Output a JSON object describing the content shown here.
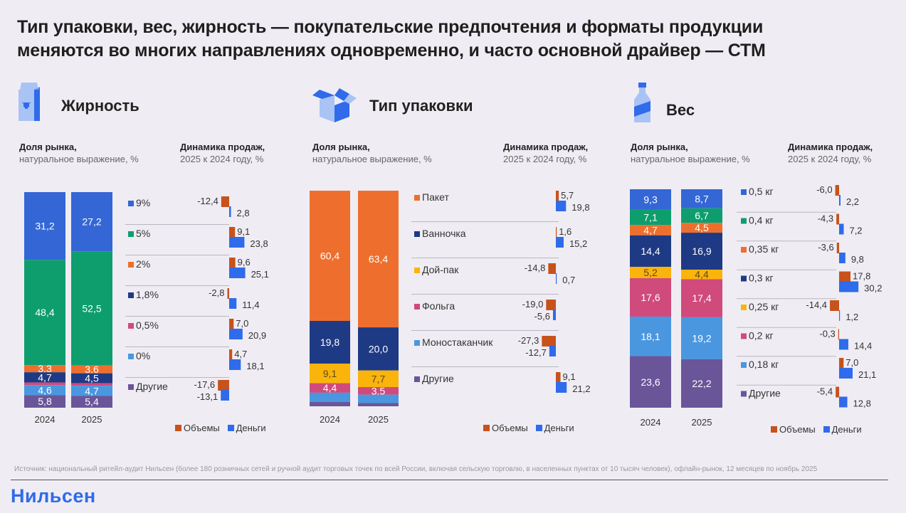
{
  "title_lines": [
    "Тип упаковки, вес, жирность — покупательские предпочтения и форматы продукции",
    "меняются во многих направлениях одновременно, и часто основной драйвер — СТМ"
  ],
  "subtitles": {
    "share_bold": "Доля рынка,",
    "share_light": "натуральное выражение, %",
    "dyn_bold": "Динамика продаж,",
    "dyn_light": "2025 к 2024 году, %"
  },
  "legend": {
    "volume": "Объемы",
    "money": "Деньги",
    "volume_color": "#c8521c",
    "money_color": "#2f6bea"
  },
  "footer": {
    "source": "Источник: национальный ритейл-аудит Нильсен (более 180 розничных сетей и ручной аудит торговых точек по всей России, включая сельскую торговлю, в населенных пунктах от 10 тысяч человек), офлайн-рынок, 12 месяцев по ноябрь 2025",
    "brand": "Нильсен"
  },
  "chart_data": [
    {
      "type": "bar",
      "title": "Жирность",
      "icon": "milk-carton-icon",
      "years": [
        "2024",
        "2025"
      ],
      "categories": [
        "9%",
        "5%",
        "2%",
        "1,8%",
        "0,5%",
        "0%",
        "Другие"
      ],
      "colors": [
        "#3466d6",
        "#0e9e6e",
        "#ee6f2d",
        "#1e3a84",
        "#d04a7c",
        "#4a97e0",
        "#6a5599"
      ],
      "label_colors": [
        "#fff",
        "#fff",
        "#fff",
        "#fff",
        "#fff",
        "#fff",
        "#fff"
      ],
      "share_2024": [
        31.2,
        48.4,
        3.3,
        4.7,
        1.2,
        4.6,
        5.8
      ],
      "share_2025": [
        27.2,
        52.5,
        3.6,
        4.5,
        1.2,
        4.7,
        5.4
      ],
      "share_labels_2024": [
        "31,2",
        "48,4",
        "3,3",
        "4,7",
        "",
        "4,6",
        "5,8"
      ],
      "share_labels_2025": [
        "27,2",
        "52,5",
        "3,6",
        "4,5",
        "",
        "4,7",
        "5,4"
      ],
      "volume_change": [
        -12.4,
        9.1,
        9.6,
        -2.8,
        7.0,
        4.7,
        -17.6
      ],
      "money_change": [
        2.8,
        23.8,
        25.1,
        11.4,
        20.9,
        18.1,
        -13.1
      ],
      "volume_labels": [
        "-12,4",
        "9,1",
        "9,6",
        "-2,8",
        "7,0",
        "4,7",
        "-17,6"
      ],
      "money_labels": [
        "2,8",
        "23,8",
        "25,1",
        "11,4",
        "20,9",
        "18,1",
        "-13,1"
      ]
    },
    {
      "type": "bar",
      "title": "Тип упаковки",
      "icon": "box-icon",
      "years": [
        "2024",
        "2025"
      ],
      "categories": [
        "Пакет",
        "Ванночка",
        "Дой-пак",
        "Фольга",
        "Моностаканчик",
        "Другие"
      ],
      "colors": [
        "#ee6f2d",
        "#1e3a84",
        "#fbb40c",
        "#d04a7c",
        "#4a97e0",
        "#6a5599"
      ],
      "label_colors": [
        "#fff",
        "#fff",
        "#5a4a20",
        "#fff",
        "#fff",
        "#fff"
      ],
      "share_2024": [
        60.4,
        19.8,
        9.1,
        4.4,
        4.3,
        2.0
      ],
      "share_2025": [
        63.4,
        20.0,
        7.7,
        3.5,
        3.9,
        1.5
      ],
      "share_labels_2024": [
        "60,4",
        "19,8",
        "9,1",
        "4,4",
        "",
        ""
      ],
      "share_labels_2025": [
        "63,4",
        "20,0",
        "7,7",
        "3,5",
        "",
        ""
      ],
      "volume_change": [
        5.7,
        1.6,
        -14.8,
        -19.0,
        -27.3,
        9.1
      ],
      "money_change": [
        19.8,
        15.2,
        0.7,
        -5.6,
        -12.7,
        21.2
      ],
      "volume_labels": [
        "5,7",
        "1,6",
        "-14,8",
        "-19,0",
        "-27,3",
        "9,1"
      ],
      "money_labels": [
        "19,8",
        "15,2",
        "0,7",
        "-5,6",
        "-12,7",
        "21,2"
      ]
    },
    {
      "type": "bar",
      "title": "Вес",
      "icon": "bottle-icon",
      "years": [
        "2024",
        "2025"
      ],
      "categories": [
        "0,5 кг",
        "0,4 кг",
        "0,35 кг",
        "0,3 кг",
        "0,25 кг",
        "0,2 кг",
        "0,18 кг",
        "Другие"
      ],
      "colors": [
        "#3466d6",
        "#0e9e6e",
        "#ee6f2d",
        "#1e3a84",
        "#fbb40c",
        "#d04a7c",
        "#4a97e0",
        "#6a5599"
      ],
      "label_colors": [
        "#fff",
        "#fff",
        "#fff",
        "#fff",
        "#5a4a20",
        "#fff",
        "#fff",
        "#fff"
      ],
      "share_2024": [
        9.3,
        7.1,
        4.7,
        14.4,
        5.2,
        17.6,
        18.1,
        23.6
      ],
      "share_2025": [
        8.7,
        6.7,
        4.5,
        16.9,
        4.4,
        17.4,
        19.2,
        22.2
      ],
      "share_labels_2024": [
        "9,3",
        "7,1",
        "4,7",
        "14,4",
        "5,2",
        "17,6",
        "18,1",
        "23,6"
      ],
      "share_labels_2025": [
        "8,7",
        "6,7",
        "4,5",
        "16,9",
        "4,4",
        "17,4",
        "19,2",
        "22,2"
      ],
      "volume_change": [
        -6.0,
        -4.3,
        -3.6,
        17.8,
        -14.4,
        -0.3,
        7.0,
        -5.4
      ],
      "money_change": [
        2.2,
        7.2,
        9.8,
        30.2,
        1.2,
        14.4,
        21.1,
        12.8
      ],
      "volume_labels": [
        "-6,0",
        "-4,3",
        "-3,6",
        "17,8",
        "-14,4",
        "-0,3",
        "7,0",
        "-5,4"
      ],
      "money_labels": [
        "2,2",
        "7,2",
        "9,8",
        "30,2",
        "1,2",
        "14,4",
        "21,1",
        "12,8"
      ]
    }
  ]
}
